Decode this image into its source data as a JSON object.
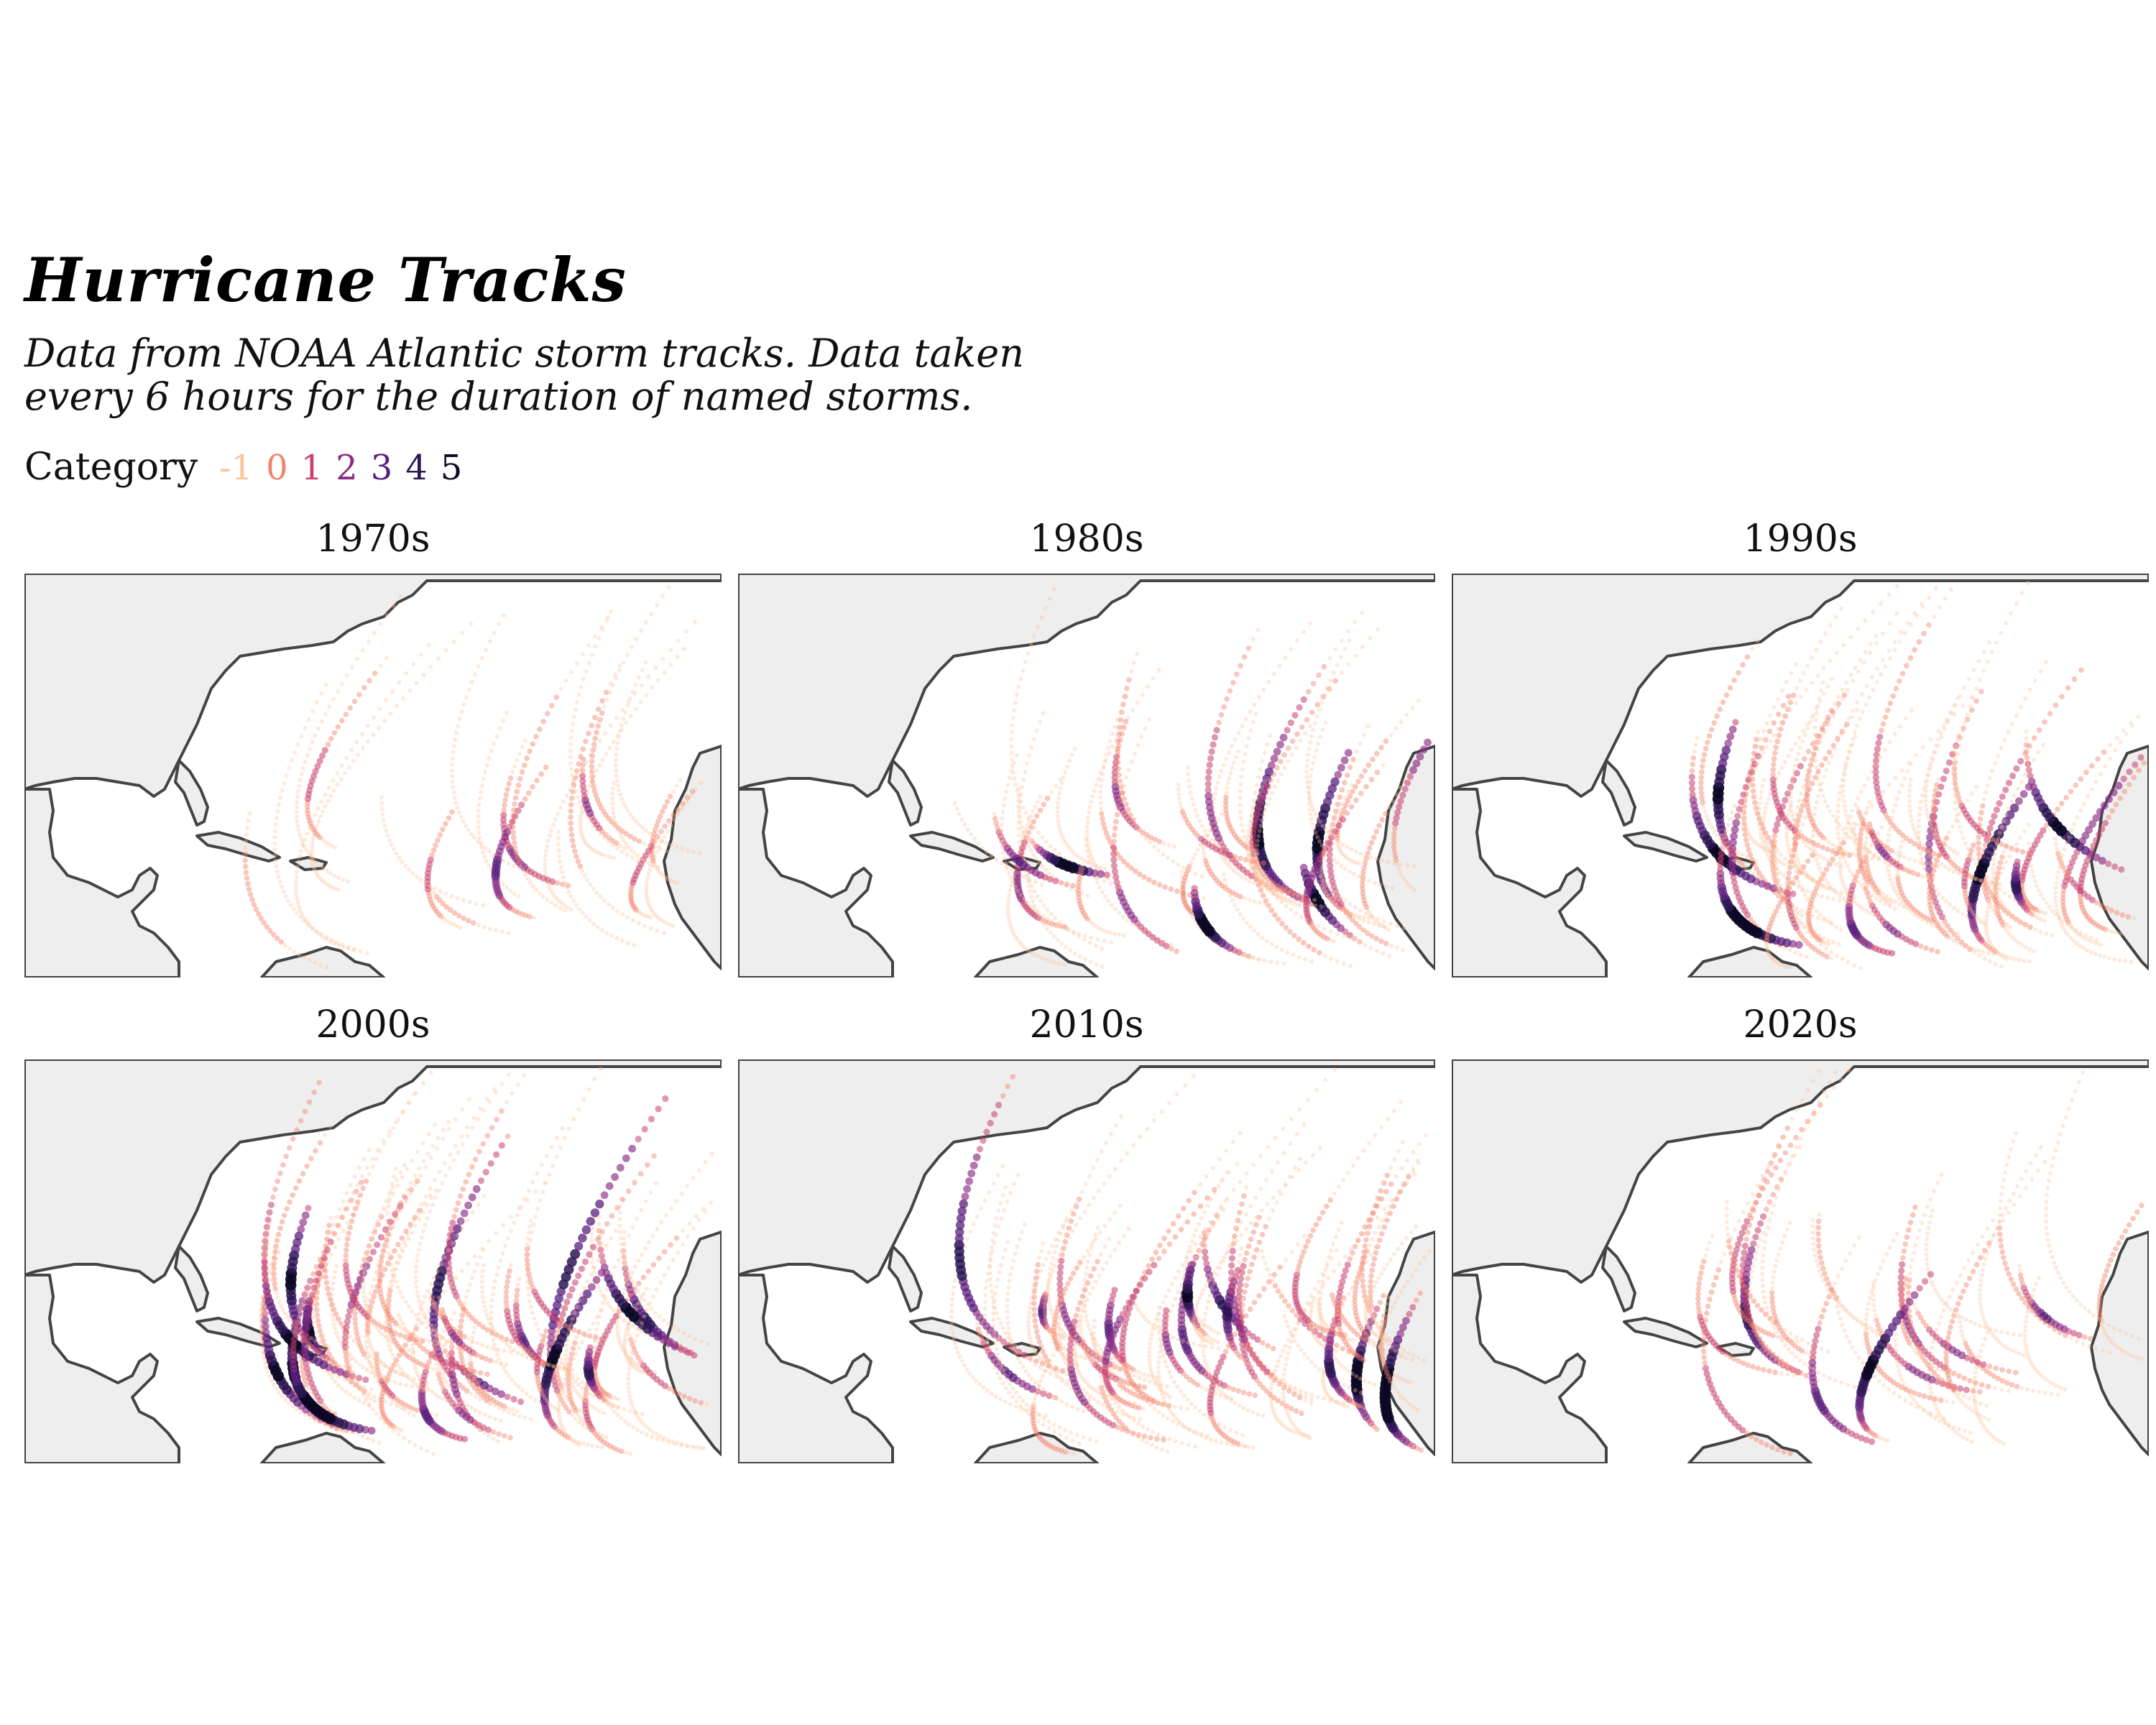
{
  "title": "Hurricane Tracks",
  "subtitle_line1": "Data from NOAA Atlantic storm tracks. Data taken",
  "subtitle_line2": "every 6 hours for the duration of named storms.",
  "legend": {
    "label": "Category",
    "keys": [
      {
        "value": "-1",
        "color": "#fbc49a"
      },
      {
        "value": "0",
        "color": "#f4826a"
      },
      {
        "value": "1",
        "color": "#c9406e"
      },
      {
        "value": "2",
        "color": "#8b2c84"
      },
      {
        "value": "3",
        "color": "#5a1f7c"
      },
      {
        "value": "4",
        "color": "#2d1654"
      },
      {
        "value": "5",
        "color": "#0c0826"
      }
    ]
  },
  "land_color": "#eeeeee",
  "coast_color": "#444444",
  "panels": [
    {
      "decade": "1970s",
      "density": 26,
      "intensity": 0.45,
      "seed": 11
    },
    {
      "decade": "1980s",
      "density": 46,
      "intensity": 0.55,
      "seed": 23
    },
    {
      "decade": "1990s",
      "density": 60,
      "intensity": 0.75,
      "seed": 37
    },
    {
      "decade": "2000s",
      "density": 70,
      "intensity": 0.8,
      "seed": 53
    },
    {
      "decade": "2010s",
      "density": 66,
      "intensity": 0.7,
      "seed": 71
    },
    {
      "decade": "2020s",
      "density": 32,
      "intensity": 0.45,
      "seed": 89
    }
  ]
}
